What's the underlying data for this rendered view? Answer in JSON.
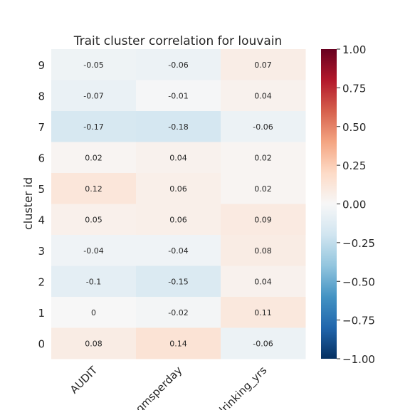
{
  "chart_data": {
    "type": "heatmap",
    "title": "Trait cluster correlation for louvain",
    "xlabel": "",
    "ylabel": "cluster id",
    "x_categories": [
      "AUDIT",
      "ngmsperday",
      "drinking_yrs"
    ],
    "y_categories": [
      "9",
      "8",
      "7",
      "6",
      "5",
      "4",
      "3",
      "2",
      "1",
      "0"
    ],
    "values": [
      [
        -0.05,
        -0.06,
        0.07
      ],
      [
        -0.07,
        -0.01,
        0.04
      ],
      [
        -0.17,
        -0.18,
        -0.06
      ],
      [
        0.02,
        0.04,
        0.02
      ],
      [
        0.12,
        0.06,
        0.02
      ],
      [
        0.05,
        0.06,
        0.09
      ],
      [
        -0.04,
        -0.04,
        0.08
      ],
      [
        -0.1,
        -0.15,
        0.04
      ],
      [
        0,
        -0.02,
        0.11
      ],
      [
        0.08,
        0.14,
        -0.06
      ]
    ],
    "value_labels": [
      [
        "-0.05",
        "-0.06",
        "0.07"
      ],
      [
        "-0.07",
        "-0.01",
        "0.04"
      ],
      [
        "-0.17",
        "-0.18",
        "-0.06"
      ],
      [
        "0.02",
        "0.04",
        "0.02"
      ],
      [
        "0.12",
        "0.06",
        "0.02"
      ],
      [
        "0.05",
        "0.06",
        "0.09"
      ],
      [
        "-0.04",
        "-0.04",
        "0.08"
      ],
      [
        "-0.1",
        "-0.15",
        "0.04"
      ],
      [
        "0",
        "-0.02",
        "0.11"
      ],
      [
        "0.08",
        "0.14",
        "-0.06"
      ]
    ],
    "colormap": "RdBu_r",
    "vmin": -1.0,
    "vmax": 1.0,
    "colorbar_ticks": [
      1.0,
      0.75,
      0.5,
      0.25,
      0.0,
      -0.25,
      -0.5,
      -0.75,
      -1.0
    ],
    "colorbar_tick_labels": [
      "1.00",
      "0.75",
      "0.50",
      "0.25",
      "0.00",
      "−0.25",
      "−0.50",
      "−0.75",
      "−1.00"
    ],
    "grid": false
  }
}
